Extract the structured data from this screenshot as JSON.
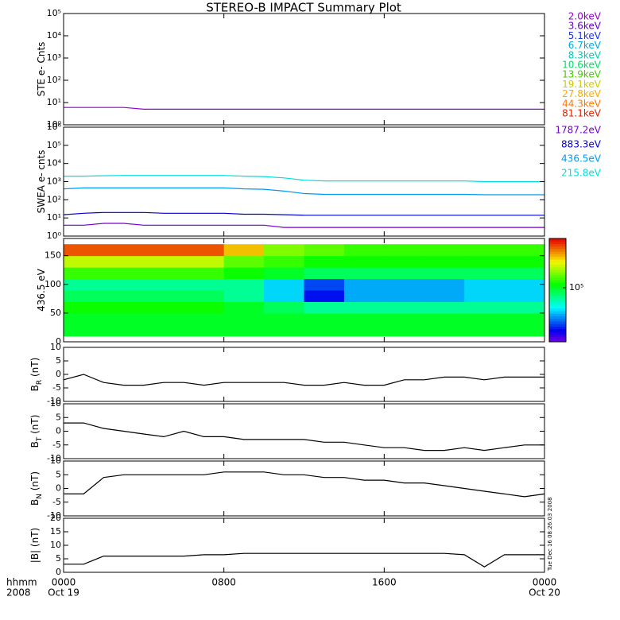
{
  "chart_data": {
    "type": "stacked-panels",
    "title": "STEREO-B IMPACT Summary Plot",
    "x": [
      0,
      1,
      2,
      3,
      4,
      5,
      6,
      7,
      8,
      9,
      10,
      11,
      12,
      13,
      14,
      15,
      16,
      17,
      18,
      19,
      20,
      21,
      22,
      23,
      24
    ],
    "xlim": [
      0,
      24
    ],
    "xticks": [
      {
        "value": 0,
        "label": "0000"
      },
      {
        "value": 8,
        "label": "0800"
      },
      {
        "value": 16,
        "label": "1600"
      },
      {
        "value": 24,
        "label": "0000"
      }
    ],
    "x_dates": [
      {
        "value": 0,
        "label": "Oct 19"
      },
      {
        "value": 24,
        "label": "Oct 20"
      }
    ],
    "x_caption": [
      "hhmm",
      "2008"
    ],
    "timestamp": "Tue Dec 16 08:26:03 2008",
    "panels": [
      {
        "type": "line",
        "y_label": [
          "STE e- Cnts"
        ],
        "log": true,
        "ylim": [
          1,
          100000
        ],
        "yticks": [
          {
            "value": 1,
            "label": "10⁰"
          },
          {
            "value": 10,
            "label": "10¹"
          },
          {
            "value": 100,
            "label": "10²"
          },
          {
            "value": 1000,
            "label": "10³"
          },
          {
            "value": 10000,
            "label": "10⁴"
          },
          {
            "value": 100000,
            "label": "10⁵"
          }
        ],
        "series": [
          {
            "name": "2.0keV",
            "color": "#9900cc",
            "values": [
              6,
              6,
              6,
              6,
              5,
              5,
              5,
              5,
              5,
              5,
              5,
              5,
              5,
              5,
              5,
              5,
              5,
              5,
              5,
              5,
              5,
              5,
              5,
              5,
              5
            ]
          },
          {
            "name": "3.6keV",
            "color": "#6600cc"
          },
          {
            "name": "5.1keV",
            "color": "#2233dd"
          },
          {
            "name": "6.7keV",
            "color": "#00aadd"
          },
          {
            "name": "8.3keV",
            "color": "#00ccbb"
          },
          {
            "name": "10.6keV",
            "color": "#00dd66"
          },
          {
            "name": "13.9keV",
            "color": "#44cc00"
          },
          {
            "name": "19.1keV",
            "color": "#cccc00"
          },
          {
            "name": "27.8keV",
            "color": "#ffaa00"
          },
          {
            "name": "44.3keV",
            "color": "#ff7700"
          },
          {
            "name": "81.1keV",
            "color": "#dd2200"
          }
        ]
      },
      {
        "type": "line",
        "y_label": [
          "SWEA e- cnts"
        ],
        "log": true,
        "ylim": [
          1,
          1000000
        ],
        "yticks": [
          {
            "value": 1,
            "label": "10⁰"
          },
          {
            "value": 10,
            "label": "10¹"
          },
          {
            "value": 100,
            "label": "10²"
          },
          {
            "value": 1000,
            "label": "10³"
          },
          {
            "value": 10000,
            "label": "10⁴"
          },
          {
            "value": 100000,
            "label": "10⁵"
          },
          {
            "value": 1000000,
            "label": "10⁶"
          }
        ],
        "series": [
          {
            "name": "1787.2eV",
            "color": "#7700cc",
            "values": [
              4,
              4,
              5,
              5,
              4,
              4,
              4,
              4,
              4,
              4,
              4,
              3,
              3,
              3,
              3,
              3,
              3,
              3,
              3,
              3,
              3,
              3,
              3,
              3,
              3
            ]
          },
          {
            "name": "883.3eV",
            "color": "#0000cc",
            "values": [
              15,
              18,
              20,
              20,
              20,
              18,
              18,
              18,
              18,
              16,
              16,
              15,
              14,
              14,
              14,
              14,
              14,
              14,
              14,
              14,
              14,
              14,
              14,
              14,
              14
            ]
          },
          {
            "name": "436.5eV",
            "color": "#0099ee",
            "values": [
              400,
              450,
              450,
              450,
              450,
              450,
              450,
              450,
              450,
              400,
              380,
              300,
              220,
              200,
              200,
              200,
              200,
              200,
              200,
              200,
              200,
              190,
              190,
              190,
              190
            ]
          },
          {
            "name": "215.8eV",
            "color": "#00dddd",
            "values": [
              2000,
              2000,
              2100,
              2200,
              2200,
              2200,
              2200,
              2200,
              2200,
              2000,
              1900,
              1600,
              1200,
              1100,
              1100,
              1100,
              1100,
              1100,
              1100,
              1100,
              1100,
              1000,
              1000,
              1000,
              1000
            ]
          }
        ]
      },
      {
        "type": "heatmap",
        "y_label": [
          "436.5 eV"
        ],
        "ylim": [
          0,
          180
        ],
        "yticks": [
          0,
          50,
          100,
          150
        ],
        "x_edges": [
          0,
          2,
          4,
          6,
          8,
          10,
          12,
          14,
          16,
          18,
          20,
          22,
          24
        ],
        "y_edges": [
          10,
          30,
          50,
          70,
          90,
          110,
          130,
          150,
          170
        ],
        "z": [
          [
            100000,
            100000,
            110000,
            90000,
            80000,
            120000,
            160000,
            250000
          ],
          [
            100000,
            100000,
            110000,
            90000,
            80000,
            120000,
            160000,
            250000
          ],
          [
            100000,
            100000,
            110000,
            90000,
            80000,
            120000,
            160000,
            250000
          ],
          [
            100000,
            100000,
            110000,
            90000,
            80000,
            120000,
            160000,
            250000
          ],
          [
            100000,
            100000,
            100000,
            80000,
            80000,
            110000,
            130000,
            200000
          ],
          [
            100000,
            100000,
            90000,
            60000,
            60000,
            100000,
            120000,
            140000
          ],
          [
            100000,
            100000,
            80000,
            40000,
            45000,
            90000,
            110000,
            130000
          ],
          [
            100000,
            100000,
            80000,
            55000,
            55000,
            90000,
            110000,
            120000
          ],
          [
            100000,
            100000,
            80000,
            55000,
            55000,
            90000,
            110000,
            120000
          ],
          [
            100000,
            100000,
            80000,
            55000,
            55000,
            90000,
            110000,
            120000
          ],
          [
            100000,
            100000,
            80000,
            60000,
            60000,
            90000,
            110000,
            120000
          ],
          [
            100000,
            100000,
            80000,
            60000,
            60000,
            90000,
            110000,
            120000
          ]
        ],
        "zlim": [
          30000,
          300000
        ],
        "zticks": [
          {
            "value": 100000,
            "label": "10⁵"
          }
        ]
      },
      {
        "type": "line",
        "y_label": [
          "B",
          "R",
          " (nT)"
        ],
        "ylim": [
          -10,
          10
        ],
        "yticks": [
          -10,
          -5,
          0,
          5,
          10
        ],
        "series": [
          {
            "color": "#000000",
            "values": [
              -2,
              0,
              -3,
              -4,
              -4,
              -3,
              -3,
              -4,
              -3,
              -3,
              -3,
              -3,
              -4,
              -4,
              -3,
              -4,
              -4,
              -2,
              -2,
              -1,
              -1,
              -2,
              -1,
              -1,
              -1
            ]
          }
        ]
      },
      {
        "type": "line",
        "y_label": [
          "B",
          "T",
          " (nT)"
        ],
        "ylim": [
          -10,
          10
        ],
        "yticks": [
          -10,
          -5,
          0,
          5,
          10
        ],
        "series": [
          {
            "color": "#000000",
            "values": [
              3,
              3,
              1,
              0,
              -1,
              -2,
              0,
              -2,
              -2,
              -3,
              -3,
              -3,
              -3,
              -4,
              -4,
              -5,
              -6,
              -6,
              -7,
              -7,
              -6,
              -7,
              -6,
              -5,
              -5
            ]
          }
        ]
      },
      {
        "type": "line",
        "y_label": [
          "B",
          "N",
          " (nT)"
        ],
        "ylim": [
          -10,
          10
        ],
        "yticks": [
          -10,
          -5,
          0,
          5,
          10
        ],
        "series": [
          {
            "color": "#000000",
            "values": [
              -2,
              -2,
              4,
              5,
              5,
              5,
              5,
              5,
              6,
              6,
              6,
              5,
              5,
              4,
              4,
              3,
              3,
              2,
              2,
              1,
              0,
              -1,
              -2,
              -3,
              -2
            ]
          }
        ]
      },
      {
        "type": "line",
        "y_label": [
          "|B| (nT)"
        ],
        "ylim": [
          0,
          20
        ],
        "yticks": [
          0,
          5,
          10,
          15,
          20
        ],
        "series": [
          {
            "color": "#000000",
            "values": [
              3,
              3,
              6,
              6,
              6,
              6,
              6,
              6.5,
              6.5,
              7,
              7,
              7,
              7,
              7,
              7,
              7,
              7,
              7,
              7,
              7,
              6.5,
              2,
              6.5,
              6.5,
              6.5
            ]
          }
        ]
      }
    ]
  }
}
